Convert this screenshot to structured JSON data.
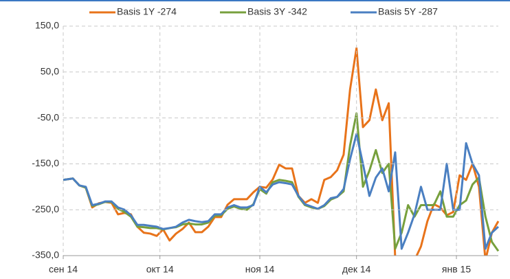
{
  "chart_data": {
    "type": "line",
    "x": [
      0,
      3,
      5,
      7,
      9,
      11,
      13,
      15,
      17,
      19,
      21,
      23,
      25,
      27,
      29,
      31,
      33,
      35,
      37,
      39,
      41,
      43,
      45,
      47,
      49,
      51,
      53,
      55,
      57,
      59,
      61,
      63,
      65,
      67,
      69,
      71,
      73,
      75,
      77,
      79,
      81,
      83,
      85,
      87,
      89,
      91,
      93,
      95,
      97,
      99,
      101,
      103,
      105,
      107,
      109,
      111,
      113,
      115,
      117,
      119,
      121,
      123,
      125,
      127,
      129,
      131,
      133,
      135
    ],
    "series": [
      {
        "name": "Basis 1Y  -274",
        "color": "#e8731a",
        "values": [
          -185,
          -182,
          -197,
          -202,
          -245,
          -236,
          -233,
          -235,
          -260,
          -257,
          -260,
          -287,
          -300,
          -302,
          -307,
          -293,
          -317,
          -302,
          -292,
          -278,
          -299,
          -299,
          -287,
          -266,
          -266,
          -239,
          -227,
          -227,
          -227,
          -212,
          -200,
          -202,
          -184,
          -152,
          -160,
          -160,
          -220,
          -235,
          -227,
          -235,
          -185,
          -179,
          -164,
          -130,
          12,
          102,
          -70,
          -55,
          12,
          -55,
          -18,
          -355,
          -360,
          -370,
          -360,
          -330,
          -275,
          -238,
          -245,
          -262,
          -255,
          -175,
          -185,
          -150,
          -200,
          -360,
          -300,
          -275
        ]
      },
      {
        "name": "Basis 3Y  -342",
        "color": "#77a03d",
        "values": [
          -185,
          -182,
          -197,
          -202,
          -242,
          -238,
          -233,
          -233,
          -248,
          -255,
          -265,
          -287,
          -288,
          -290,
          -290,
          -293,
          -290,
          -288,
          -282,
          -280,
          -282,
          -282,
          -278,
          -263,
          -262,
          -248,
          -243,
          -248,
          -250,
          -238,
          -205,
          -215,
          -190,
          -185,
          -187,
          -190,
          -222,
          -240,
          -245,
          -248,
          -242,
          -228,
          -222,
          -210,
          -110,
          -40,
          -200,
          -165,
          -120,
          -170,
          -150,
          -335,
          -300,
          -240,
          -265,
          -240,
          -240,
          -240,
          -210,
          -265,
          -265,
          -240,
          -230,
          -195,
          -180,
          -265,
          -320,
          -340
        ]
      },
      {
        "name": "Basis 5Y  -287",
        "color": "#4a7fc1",
        "values": [
          -185,
          -182,
          -197,
          -200,
          -240,
          -237,
          -232,
          -232,
          -245,
          -250,
          -262,
          -283,
          -283,
          -285,
          -287,
          -292,
          -290,
          -287,
          -278,
          -272,
          -275,
          -277,
          -275,
          -260,
          -260,
          -245,
          -240,
          -245,
          -245,
          -240,
          -200,
          -212,
          -195,
          -190,
          -192,
          -195,
          -220,
          -238,
          -243,
          -248,
          -240,
          -225,
          -222,
          -205,
          -140,
          -85,
          -150,
          -220,
          -180,
          -160,
          -210,
          -125,
          -335,
          -300,
          -260,
          -200,
          -250,
          -250,
          -250,
          -150,
          -250,
          -250,
          -105,
          -150,
          -175,
          -335,
          -300,
          -287
        ]
      }
    ],
    "xlim": [
      0,
      135
    ],
    "xticks": [
      {
        "value": 0,
        "label": "сен 14"
      },
      {
        "value": 30,
        "label": "окт 14"
      },
      {
        "value": 61,
        "label": "ноя 14"
      },
      {
        "value": 91,
        "label": "дек 14"
      },
      {
        "value": 122,
        "label": "янв 15"
      }
    ],
    "ylim": [
      -350,
      150
    ],
    "yticks": [
      {
        "value": -350,
        "label": "-350,0"
      },
      {
        "value": -250,
        "label": "-250,0"
      },
      {
        "value": -150,
        "label": "-150,0"
      },
      {
        "value": -50,
        "label": "-50,0"
      },
      {
        "value": 50,
        "label": "50,0"
      },
      {
        "value": 150,
        "label": "150,0"
      }
    ],
    "grid": true,
    "legend": "top"
  }
}
